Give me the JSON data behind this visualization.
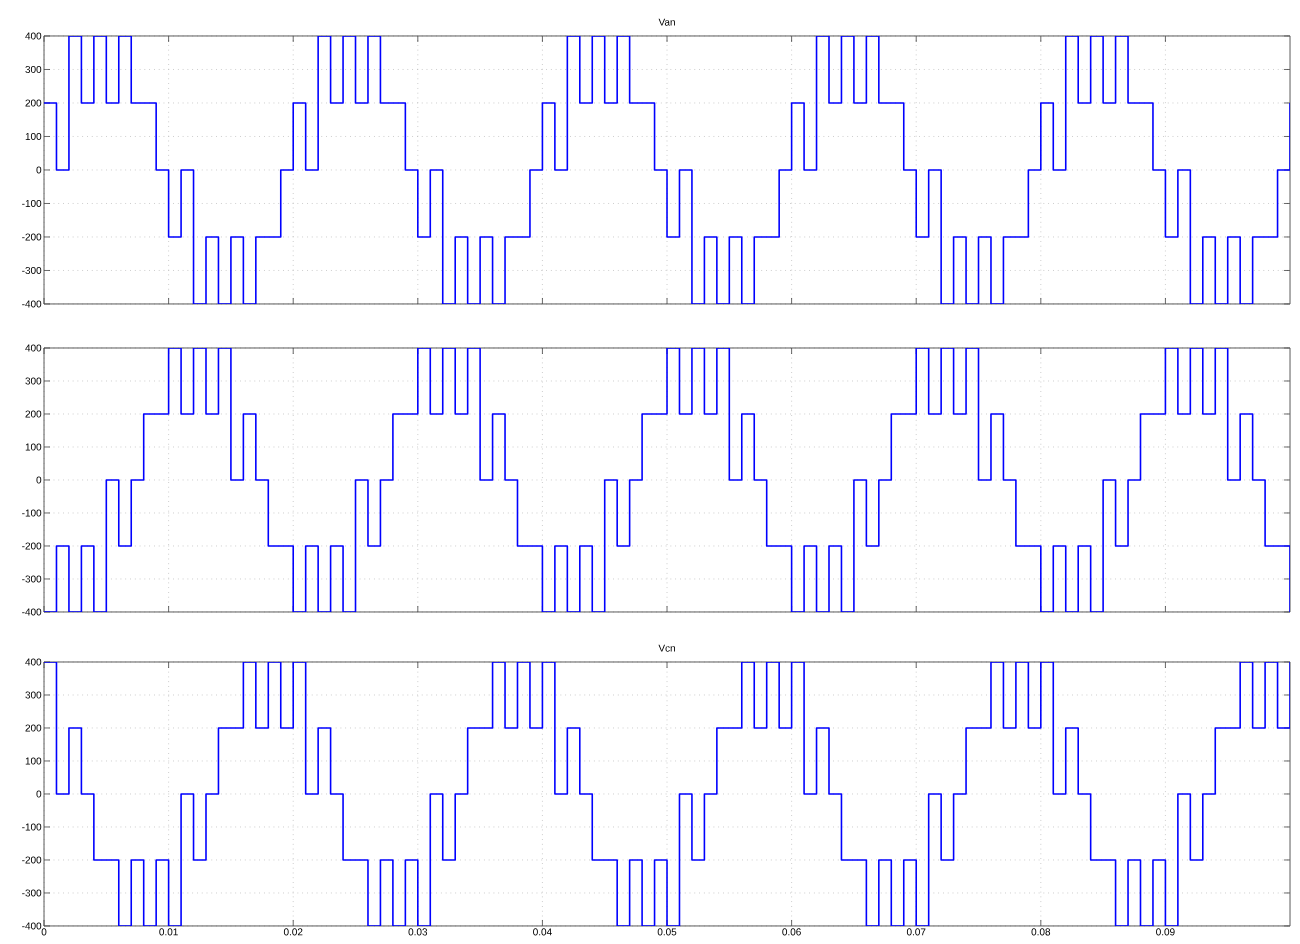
{
  "chart_data": [
    {
      "type": "step",
      "title": "Van",
      "xlim": [
        0,
        0.1
      ],
      "ylim": [
        -400,
        400
      ],
      "xticks": [
        0,
        0.01,
        0.02,
        0.03,
        0.04,
        0.05,
        0.06,
        0.07,
        0.08,
        0.09
      ],
      "yticks": [
        -400,
        -300,
        -200,
        -100,
        0,
        100,
        200,
        300,
        400
      ],
      "grid": true,
      "tick_labels": "y",
      "x": [
        0,
        0.001,
        0.002,
        0.003,
        0.004,
        0.005,
        0.006,
        0.007,
        0.008,
        0.009,
        0.01,
        0.011,
        0.012,
        0.013,
        0.014,
        0.015,
        0.016,
        0.017,
        0.018,
        0.019,
        0.02,
        0.021,
        0.022,
        0.023,
        0.024,
        0.025,
        0.026,
        0.027,
        0.028,
        0.029,
        0.03,
        0.031,
        0.032,
        0.033,
        0.034,
        0.035,
        0.036,
        0.037,
        0.038,
        0.039,
        0.04,
        0.041,
        0.042,
        0.043,
        0.044,
        0.045,
        0.046,
        0.047,
        0.048,
        0.049,
        0.05,
        0.051,
        0.052,
        0.053,
        0.054,
        0.055,
        0.056,
        0.057,
        0.058,
        0.059,
        0.06,
        0.061,
        0.062,
        0.063,
        0.064,
        0.065,
        0.066,
        0.067,
        0.068,
        0.069,
        0.07,
        0.071,
        0.072,
        0.073,
        0.074,
        0.075,
        0.076,
        0.077,
        0.078,
        0.079,
        0.08,
        0.081,
        0.082,
        0.083,
        0.084,
        0.085,
        0.086,
        0.087,
        0.088,
        0.089,
        0.09,
        0.091,
        0.092,
        0.093,
        0.094,
        0.095,
        0.096,
        0.097,
        0.098,
        0.099,
        0.1
      ],
      "series": [
        {
          "color": "#0000ff",
          "values": [
            200,
            0,
            400,
            200,
            400,
            200,
            400,
            200,
            200,
            0,
            -200,
            0,
            -400,
            -200,
            -400,
            -200,
            -400,
            -200,
            -200,
            0,
            200,
            0,
            400,
            200,
            400,
            200,
            400,
            200,
            200,
            0,
            -200,
            0,
            -400,
            -200,
            -400,
            -200,
            -400,
            -200,
            -200,
            0,
            200,
            0,
            400,
            200,
            400,
            200,
            400,
            200,
            200,
            0,
            -200,
            0,
            -400,
            -200,
            -400,
            -200,
            -400,
            -200,
            -200,
            0,
            200,
            0,
            400,
            200,
            400,
            200,
            400,
            200,
            200,
            0,
            -200,
            0,
            -400,
            -200,
            -400,
            -200,
            -400,
            -200,
            -200,
            0,
            200,
            0,
            400,
            200,
            400,
            200,
            400,
            200,
            200,
            0,
            -200,
            0,
            -400,
            -200,
            -400,
            -200,
            -400,
            -200,
            -200,
            0,
            200
          ]
        }
      ]
    },
    {
      "type": "step",
      "xlim": [
        0,
        0.1
      ],
      "ylim": [
        -400,
        400
      ],
      "xticks": [
        0,
        0.01,
        0.02,
        0.03,
        0.04,
        0.05,
        0.06,
        0.07,
        0.08,
        0.09
      ],
      "yticks": [
        -400,
        -300,
        -200,
        -100,
        0,
        100,
        200,
        300,
        400
      ],
      "grid": true,
      "tick_labels": "y",
      "x": [
        0,
        0.001,
        0.002,
        0.003,
        0.004,
        0.005,
        0.006,
        0.007,
        0.008,
        0.009,
        0.01,
        0.011,
        0.012,
        0.013,
        0.014,
        0.015,
        0.016,
        0.017,
        0.018,
        0.019,
        0.02,
        0.021,
        0.022,
        0.023,
        0.024,
        0.025,
        0.026,
        0.027,
        0.028,
        0.029,
        0.03,
        0.031,
        0.032,
        0.033,
        0.034,
        0.035,
        0.036,
        0.037,
        0.038,
        0.039,
        0.04,
        0.041,
        0.042,
        0.043,
        0.044,
        0.045,
        0.046,
        0.047,
        0.048,
        0.049,
        0.05,
        0.051,
        0.052,
        0.053,
        0.054,
        0.055,
        0.056,
        0.057,
        0.058,
        0.059,
        0.06,
        0.061,
        0.062,
        0.063,
        0.064,
        0.065,
        0.066,
        0.067,
        0.068,
        0.069,
        0.07,
        0.071,
        0.072,
        0.073,
        0.074,
        0.075,
        0.076,
        0.077,
        0.078,
        0.079,
        0.08,
        0.081,
        0.082,
        0.083,
        0.084,
        0.085,
        0.086,
        0.087,
        0.088,
        0.089,
        0.09,
        0.091,
        0.092,
        0.093,
        0.094,
        0.095,
        0.096,
        0.097,
        0.098,
        0.099,
        0.1
      ],
      "series": [
        {
          "color": "#0000ff",
          "values": [
            -400,
            -200,
            -400,
            -200,
            -400,
            0,
            -200,
            0,
            200,
            200,
            400,
            200,
            400,
            200,
            400,
            0,
            200,
            0,
            -200,
            -200,
            -400,
            -200,
            -400,
            -200,
            -400,
            0,
            -200,
            0,
            200,
            200,
            400,
            200,
            400,
            200,
            400,
            0,
            200,
            0,
            -200,
            -200,
            -400,
            -200,
            -400,
            -200,
            -400,
            0,
            -200,
            0,
            200,
            200,
            400,
            200,
            400,
            200,
            400,
            0,
            200,
            0,
            -200,
            -200,
            -400,
            -200,
            -400,
            -200,
            -400,
            0,
            -200,
            0,
            200,
            200,
            400,
            200,
            400,
            200,
            400,
            0,
            200,
            0,
            -200,
            -200,
            -400,
            -200,
            -400,
            -200,
            -400,
            0,
            -200,
            0,
            200,
            200,
            400,
            200,
            400,
            200,
            400,
            0,
            200,
            0,
            -200,
            -200,
            -400
          ]
        }
      ]
    },
    {
      "type": "step",
      "title": "Vcn",
      "xlim": [
        0,
        0.1
      ],
      "ylim": [
        -400,
        400
      ],
      "xticks": [
        0,
        0.01,
        0.02,
        0.03,
        0.04,
        0.05,
        0.06,
        0.07,
        0.08,
        0.09
      ],
      "yticks": [
        -400,
        -300,
        -200,
        -100,
        0,
        100,
        200,
        300,
        400
      ],
      "grid": true,
      "x": [
        0,
        0.001,
        0.002,
        0.003,
        0.004,
        0.005,
        0.006,
        0.007,
        0.008,
        0.009,
        0.01,
        0.011,
        0.012,
        0.013,
        0.014,
        0.015,
        0.016,
        0.017,
        0.018,
        0.019,
        0.02,
        0.021,
        0.022,
        0.023,
        0.024,
        0.025,
        0.026,
        0.027,
        0.028,
        0.029,
        0.03,
        0.031,
        0.032,
        0.033,
        0.034,
        0.035,
        0.036,
        0.037,
        0.038,
        0.039,
        0.04,
        0.041,
        0.042,
        0.043,
        0.044,
        0.045,
        0.046,
        0.047,
        0.048,
        0.049,
        0.05,
        0.051,
        0.052,
        0.053,
        0.054,
        0.055,
        0.056,
        0.057,
        0.058,
        0.059,
        0.06,
        0.061,
        0.062,
        0.063,
        0.064,
        0.065,
        0.066,
        0.067,
        0.068,
        0.069,
        0.07,
        0.071,
        0.072,
        0.073,
        0.074,
        0.075,
        0.076,
        0.077,
        0.078,
        0.079,
        0.08,
        0.081,
        0.082,
        0.083,
        0.084,
        0.085,
        0.086,
        0.087,
        0.088,
        0.089,
        0.09,
        0.091,
        0.092,
        0.093,
        0.094,
        0.095,
        0.096,
        0.097,
        0.098,
        0.099,
        0.1
      ],
      "series": [
        {
          "color": "#0000ff",
          "values": [
            400,
            0,
            200,
            0,
            -200,
            -200,
            -400,
            -200,
            -400,
            -200,
            -400,
            0,
            -200,
            0,
            200,
            200,
            400,
            200,
            400,
            200,
            400,
            0,
            200,
            0,
            -200,
            -200,
            -400,
            -200,
            -400,
            -200,
            -400,
            0,
            -200,
            0,
            200,
            200,
            400,
            200,
            400,
            200,
            400,
            0,
            200,
            0,
            -200,
            -200,
            -400,
            -200,
            -400,
            -200,
            -400,
            0,
            -200,
            0,
            200,
            200,
            400,
            200,
            400,
            200,
            400,
            0,
            200,
            0,
            -200,
            -200,
            -400,
            -200,
            -400,
            -200,
            -400,
            0,
            -200,
            0,
            200,
            200,
            400,
            200,
            400,
            200,
            400,
            0,
            200,
            0,
            -200,
            -200,
            -400,
            -200,
            -400,
            -200,
            -400,
            0,
            -200,
            0,
            200,
            200,
            400,
            200,
            400,
            200,
            400
          ]
        }
      ]
    }
  ]
}
